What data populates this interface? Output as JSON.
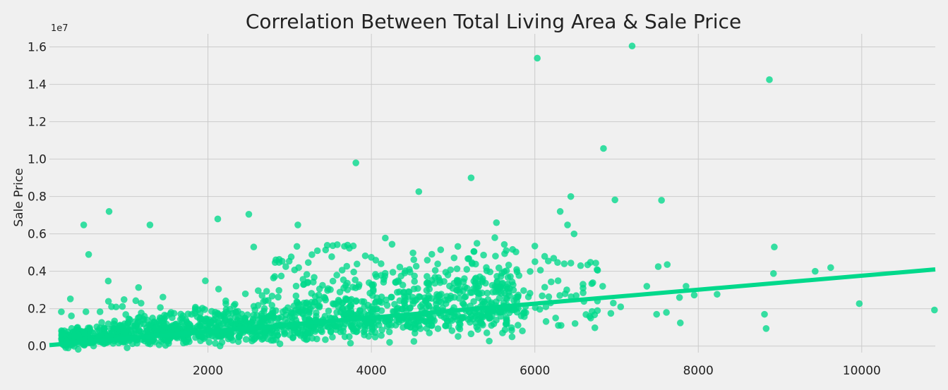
{
  "chart_data": {
    "type": "scatter",
    "title": "Correlation Between Total Living Area & Sale Price",
    "xlabel": "",
    "ylabel": "Sale Price",
    "y_offset_label": "1e7",
    "xlim": [
      60,
      10900
    ],
    "ylim": [
      -0.035,
      1.67
    ],
    "xticks": [
      2000,
      4000,
      6000,
      8000,
      10000
    ],
    "xtick_labels": [
      "2000",
      "4000",
      "6000",
      "8000",
      "10000"
    ],
    "yticks": [
      0.0,
      0.2,
      0.4,
      0.6,
      0.8,
      1.0,
      1.2,
      1.4,
      1.6
    ],
    "ytick_labels": [
      "0.0",
      "0.2",
      "0.4",
      "0.6",
      "0.8",
      "1.0",
      "1.2",
      "1.4",
      "1.6"
    ],
    "grid": true,
    "point_color": "#00d98b",
    "regression_line": {
      "x": [
        60,
        10900
      ],
      "y": [
        0.005,
        0.41
      ]
    },
    "cluster_note": "dense cluster of ~thousands of points between x≈200–6000, y≈0–0.5 (units of 1e7)",
    "outliers": [
      {
        "x": 7190,
        "y": 1.605
      },
      {
        "x": 6030,
        "y": 1.54
      },
      {
        "x": 8870,
        "y": 1.425
      },
      {
        "x": 6840,
        "y": 1.057
      },
      {
        "x": 3810,
        "y": 0.98
      },
      {
        "x": 5220,
        "y": 0.9
      },
      {
        "x": 4580,
        "y": 0.826
      },
      {
        "x": 6440,
        "y": 0.8
      },
      {
        "x": 6980,
        "y": 0.782
      },
      {
        "x": 7550,
        "y": 0.78
      },
      {
        "x": 790,
        "y": 0.72
      },
      {
        "x": 6310,
        "y": 0.72
      },
      {
        "x": 2500,
        "y": 0.705
      },
      {
        "x": 2120,
        "y": 0.68
      },
      {
        "x": 1290,
        "y": 0.648
      },
      {
        "x": 3100,
        "y": 0.648
      },
      {
        "x": 6400,
        "y": 0.648
      },
      {
        "x": 5530,
        "y": 0.66
      },
      {
        "x": 480,
        "y": 0.648
      },
      {
        "x": 6480,
        "y": 0.6
      },
      {
        "x": 5510,
        "y": 0.58
      },
      {
        "x": 4170,
        "y": 0.578
      },
      {
        "x": 540,
        "y": 0.49
      },
      {
        "x": 2560,
        "y": 0.53
      },
      {
        "x": 8930,
        "y": 0.53
      },
      {
        "x": 780,
        "y": 0.348
      },
      {
        "x": 9970,
        "y": 0.227
      },
      {
        "x": 10890,
        "y": 0.193
      },
      {
        "x": 8830,
        "y": 0.094
      },
      {
        "x": 8810,
        "y": 0.17
      },
      {
        "x": 9620,
        "y": 0.42
      },
      {
        "x": 9430,
        "y": 0.4
      },
      {
        "x": 8920,
        "y": 0.388
      },
      {
        "x": 8230,
        "y": 0.277
      },
      {
        "x": 7950,
        "y": 0.273
      },
      {
        "x": 7850,
        "y": 0.32
      },
      {
        "x": 7770,
        "y": 0.26
      },
      {
        "x": 7780,
        "y": 0.124
      },
      {
        "x": 7610,
        "y": 0.18
      },
      {
        "x": 7490,
        "y": 0.17
      },
      {
        "x": 7620,
        "y": 0.436
      },
      {
        "x": 7510,
        "y": 0.425
      },
      {
        "x": 7370,
        "y": 0.32
      },
      {
        "x": 7050,
        "y": 0.21
      },
      {
        "x": 6960,
        "y": 0.23
      },
      {
        "x": 6930,
        "y": 0.175
      },
      {
        "x": 6830,
        "y": 0.32
      },
      {
        "x": 6700,
        "y": 0.185
      },
      {
        "x": 6560,
        "y": 0.43
      },
      {
        "x": 6590,
        "y": 0.31
      },
      {
        "x": 6360,
        "y": 0.44
      },
      {
        "x": 6230,
        "y": 0.47
      },
      {
        "x": 6120,
        "y": 0.48
      },
      {
        "x": 6000,
        "y": 0.535
      },
      {
        "x": 2130,
        "y": 0.305
      },
      {
        "x": 3110,
        "y": 0.42
      }
    ]
  }
}
